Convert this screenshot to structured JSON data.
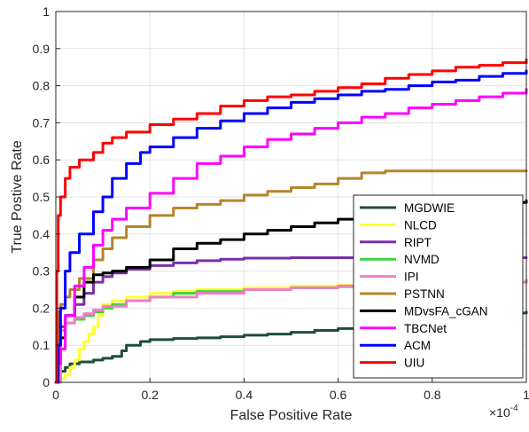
{
  "chart_data": {
    "type": "line",
    "title": "",
    "xlabel": "False Positive Rate",
    "ylabel": "True Postive Rate",
    "x_exponent_label": "×10",
    "x_exponent_power": "-4",
    "xlim": [
      0,
      1
    ],
    "ylim": [
      0,
      1
    ],
    "x_ticks": [
      "0",
      "0.2",
      "0.4",
      "0.6",
      "0.8",
      "1"
    ],
    "y_ticks": [
      "0",
      "0.1",
      "0.2",
      "0.3",
      "0.4",
      "0.5",
      "0.6",
      "0.7",
      "0.8",
      "0.9",
      "1"
    ],
    "grid": true,
    "legend_position": "lower-right",
    "series": [
      {
        "name": "MGDWIE",
        "color": "#1f4e37",
        "x": [
          0,
          0.005,
          0.01,
          0.02,
          0.03,
          0.05,
          0.08,
          0.1,
          0.12,
          0.14,
          0.15,
          0.18,
          0.2,
          0.25,
          0.3,
          0.35,
          0.4,
          0.45,
          0.5,
          0.55,
          0.6,
          0.65,
          0.7,
          0.75,
          0.8,
          0.85,
          0.9,
          0.95,
          0.98,
          1.0
        ],
        "y": [
          0,
          0.02,
          0.03,
          0.04,
          0.05,
          0.055,
          0.06,
          0.065,
          0.07,
          0.085,
          0.1,
          0.11,
          0.115,
          0.118,
          0.12,
          0.123,
          0.127,
          0.13,
          0.135,
          0.14,
          0.145,
          0.148,
          0.15,
          0.155,
          0.16,
          0.168,
          0.175,
          0.182,
          0.187,
          0.19
        ]
      },
      {
        "name": "NLCD",
        "color": "#ffff33",
        "x": [
          0,
          0.01,
          0.02,
          0.03,
          0.04,
          0.05,
          0.06,
          0.07,
          0.08,
          0.09,
          0.1,
          0.12,
          0.15,
          0.2,
          0.25,
          0.3,
          0.4,
          0.5,
          0.6,
          0.7,
          0.8,
          0.9,
          1.0
        ],
        "y": [
          0,
          0.01,
          0.02,
          0.04,
          0.06,
          0.09,
          0.11,
          0.13,
          0.15,
          0.18,
          0.21,
          0.22,
          0.23,
          0.24,
          0.245,
          0.25,
          0.255,
          0.26,
          0.262,
          0.265,
          0.267,
          0.27,
          0.27
        ]
      },
      {
        "name": "RIPT",
        "color": "#7b2fa8",
        "x": [
          0,
          0.01,
          0.02,
          0.04,
          0.06,
          0.08,
          0.1,
          0.12,
          0.15,
          0.2,
          0.25,
          0.3,
          0.35,
          0.4,
          0.5,
          0.6,
          0.7,
          0.8,
          0.9,
          1.0
        ],
        "y": [
          0,
          0.15,
          0.18,
          0.21,
          0.24,
          0.27,
          0.285,
          0.295,
          0.305,
          0.315,
          0.322,
          0.328,
          0.332,
          0.335,
          0.336,
          0.336,
          0.336,
          0.336,
          0.336,
          0.336
        ]
      },
      {
        "name": "NVMD",
        "color": "#3cd43c",
        "x": [
          0,
          0.005,
          0.01,
          0.02,
          0.04,
          0.06,
          0.08,
          0.1,
          0.12,
          0.15,
          0.2,
          0.25,
          0.3,
          0.4,
          0.5,
          0.6,
          0.7,
          0.8,
          0.9,
          1.0
        ],
        "y": [
          0,
          0.12,
          0.14,
          0.16,
          0.17,
          0.18,
          0.19,
          0.2,
          0.21,
          0.22,
          0.23,
          0.24,
          0.245,
          0.25,
          0.255,
          0.258,
          0.262,
          0.266,
          0.27,
          0.275
        ]
      },
      {
        "name": "IPI",
        "color": "#f07ec8",
        "x": [
          0,
          0.01,
          0.02,
          0.04,
          0.06,
          0.08,
          0.1,
          0.15,
          0.2,
          0.3,
          0.4,
          0.5,
          0.6,
          0.7,
          0.8,
          0.9,
          1.0
        ],
        "y": [
          0,
          0.14,
          0.16,
          0.175,
          0.185,
          0.195,
          0.205,
          0.22,
          0.23,
          0.24,
          0.25,
          0.255,
          0.26,
          0.262,
          0.266,
          0.27,
          0.272
        ]
      },
      {
        "name": "PSTNN",
        "color": "#b5852b",
        "x": [
          0,
          0.005,
          0.01,
          0.02,
          0.03,
          0.05,
          0.08,
          0.1,
          0.12,
          0.15,
          0.2,
          0.25,
          0.3,
          0.35,
          0.4,
          0.45,
          0.5,
          0.55,
          0.6,
          0.65,
          0.7,
          0.8,
          0.9,
          1.0
        ],
        "y": [
          0,
          0.19,
          0.21,
          0.23,
          0.25,
          0.28,
          0.33,
          0.36,
          0.39,
          0.42,
          0.45,
          0.47,
          0.48,
          0.49,
          0.505,
          0.515,
          0.525,
          0.535,
          0.55,
          0.565,
          0.57,
          0.57,
          0.57,
          0.57
        ]
      },
      {
        "name": "MDvsFA_cGAN",
        "color": "#000000",
        "x": [
          0,
          0.005,
          0.01,
          0.02,
          0.04,
          0.06,
          0.08,
          0.1,
          0.12,
          0.15,
          0.2,
          0.25,
          0.3,
          0.35,
          0.4,
          0.45,
          0.5,
          0.55,
          0.6,
          0.65,
          0.7,
          0.75,
          0.8,
          0.85,
          0.9,
          0.95,
          1.0
        ],
        "y": [
          0,
          0.1,
          0.12,
          0.18,
          0.23,
          0.27,
          0.29,
          0.295,
          0.3,
          0.31,
          0.33,
          0.36,
          0.375,
          0.385,
          0.4,
          0.41,
          0.42,
          0.43,
          0.44,
          0.45,
          0.455,
          0.46,
          0.465,
          0.47,
          0.48,
          0.485,
          0.49
        ]
      },
      {
        "name": "TBCNet",
        "color": "#ff00ff",
        "x": [
          0,
          0.005,
          0.01,
          0.02,
          0.04,
          0.06,
          0.08,
          0.1,
          0.12,
          0.15,
          0.2,
          0.25,
          0.3,
          0.35,
          0.4,
          0.45,
          0.5,
          0.55,
          0.6,
          0.65,
          0.7,
          0.75,
          0.8,
          0.85,
          0.9,
          0.95,
          1.0
        ],
        "y": [
          0,
          0.05,
          0.09,
          0.18,
          0.26,
          0.31,
          0.37,
          0.41,
          0.44,
          0.47,
          0.51,
          0.55,
          0.59,
          0.61,
          0.635,
          0.655,
          0.67,
          0.685,
          0.7,
          0.715,
          0.725,
          0.74,
          0.75,
          0.76,
          0.77,
          0.78,
          0.79
        ]
      },
      {
        "name": "ACM",
        "color": "#0000ff",
        "x": [
          0,
          0.005,
          0.01,
          0.02,
          0.03,
          0.05,
          0.08,
          0.1,
          0.12,
          0.15,
          0.18,
          0.2,
          0.25,
          0.3,
          0.35,
          0.4,
          0.45,
          0.5,
          0.55,
          0.6,
          0.65,
          0.7,
          0.75,
          0.8,
          0.85,
          0.9,
          0.95,
          1.0
        ],
        "y": [
          0,
          0.1,
          0.2,
          0.3,
          0.35,
          0.4,
          0.46,
          0.5,
          0.55,
          0.59,
          0.62,
          0.635,
          0.66,
          0.685,
          0.705,
          0.725,
          0.74,
          0.755,
          0.765,
          0.775,
          0.785,
          0.79,
          0.8,
          0.81,
          0.815,
          0.825,
          0.833,
          0.84
        ]
      },
      {
        "name": "UIU",
        "color": "#ff0000",
        "x": [
          0,
          0.002,
          0.005,
          0.01,
          0.02,
          0.03,
          0.05,
          0.08,
          0.1,
          0.12,
          0.15,
          0.2,
          0.25,
          0.3,
          0.35,
          0.4,
          0.45,
          0.5,
          0.55,
          0.6,
          0.65,
          0.7,
          0.75,
          0.8,
          0.85,
          0.9,
          0.95,
          1.0
        ],
        "y": [
          0,
          0.3,
          0.45,
          0.5,
          0.55,
          0.58,
          0.6,
          0.62,
          0.645,
          0.66,
          0.675,
          0.695,
          0.71,
          0.725,
          0.745,
          0.76,
          0.77,
          0.775,
          0.785,
          0.795,
          0.805,
          0.82,
          0.83,
          0.84,
          0.85,
          0.855,
          0.862,
          0.87
        ]
      }
    ]
  }
}
